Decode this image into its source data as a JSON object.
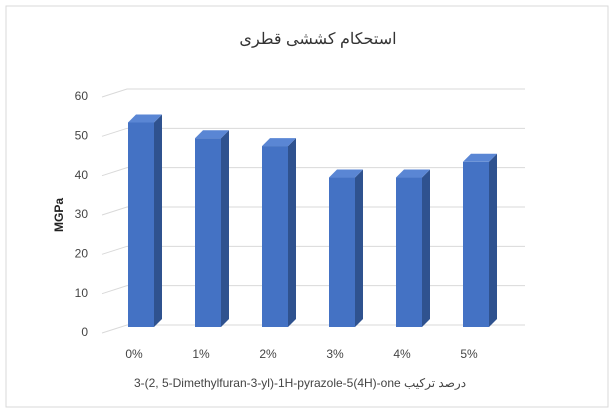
{
  "chart_data": {
    "type": "bar3d",
    "title": "استحکام کششی قطری",
    "x_label": "3-(2, 5-Dimethylfuran-3-yl)-1H-pyrazole-5(4H)-one درصد ترکیب",
    "y_label": "MGPa",
    "categories": [
      "0%",
      "1%",
      "2%",
      "3%",
      "4%",
      "5%"
    ],
    "values": [
      52,
      48,
      46,
      38,
      38,
      42
    ],
    "color": "#4472c4",
    "ylim": [
      0,
      60
    ],
    "yticks": [
      0,
      10,
      20,
      30,
      40,
      50,
      60
    ],
    "grid": true
  }
}
